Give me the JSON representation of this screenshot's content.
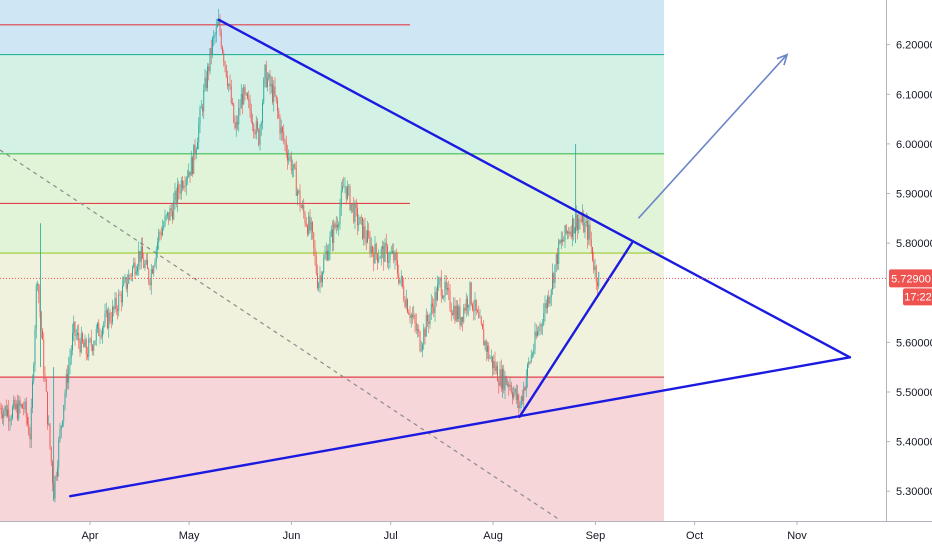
{
  "colors": {
    "bg": "#ffffff",
    "zone_blue": "#cfe6f4",
    "zone_teal": "#d3f1e4",
    "zone_green": "#e2f4d8",
    "zone_yellow": "#f0f2dd",
    "zone_red": "#f6d6d8",
    "fib_red": "#e0414b",
    "fib_teal": "#22b59a",
    "fib_green": "#40bf55",
    "fib_lime": "#9acd32",
    "triangle_blue": "#1a1ae0",
    "arrow_blue": "#6b86c8",
    "diag_gray": "#8c8c8c",
    "candle_up": "#26a69a",
    "candle_down": "#ef5350",
    "price_tag": "#ef5350",
    "axis_line": "#b2b5be"
  },
  "chart_data": {
    "type": "candlestick",
    "x_axis": {
      "labels": [
        "Apr",
        "May",
        "Jun",
        "Jul",
        "Aug",
        "Sep",
        "Oct",
        "Nov"
      ]
    },
    "y_axis": {
      "range": [
        5.24,
        6.29
      ],
      "ticks": [
        "6.20000",
        "6.10000",
        "6.00000",
        "5.90000",
        "5.80000",
        "5.60000",
        "5.50000",
        "5.40000",
        "5.30000"
      ]
    },
    "current_price": "5.72900",
    "countdown": "17:22",
    "fib_levels": [
      6.24,
      6.18,
      5.98,
      5.88,
      5.78,
      5.53
    ],
    "triangle": {
      "lines": [
        {
          "from": [
            "2019-05-10",
            6.25
          ],
          "to": [
            "2019-11-17",
            5.57
          ]
        },
        {
          "from": [
            "2019-03-26",
            5.29
          ],
          "to": [
            "2019-11-17",
            5.57
          ]
        },
        {
          "from": [
            "2019-08-09",
            5.45
          ],
          "to": [
            "2019-09-12",
            5.8
          ]
        }
      ]
    },
    "arrow": {
      "from": [
        "2019-09-14",
        5.85
      ],
      "to": [
        "2019-10-29",
        6.18
      ]
    },
    "price_path": [
      [
        "2019-02-20",
        5.39
      ],
      [
        "2019-02-24",
        5.46
      ],
      [
        "2019-02-28",
        5.45
      ],
      [
        "2019-03-04",
        5.47
      ],
      [
        "2019-03-08",
        5.46
      ],
      [
        "2019-03-12",
        5.47
      ],
      [
        "2019-03-14",
        5.41
      ],
      [
        "2019-03-16",
        5.75
      ],
      [
        "2019-03-18",
        5.55
      ],
      [
        "2019-03-20",
        5.38
      ],
      [
        "2019-03-21",
        5.3
      ],
      [
        "2019-03-24",
        5.48
      ],
      [
        "2019-03-27",
        5.62
      ],
      [
        "2019-03-31",
        5.58
      ],
      [
        "2019-04-04",
        5.63
      ],
      [
        "2019-04-08",
        5.66
      ],
      [
        "2019-04-12",
        5.72
      ],
      [
        "2019-04-16",
        5.78
      ],
      [
        "2019-04-19",
        5.73
      ],
      [
        "2019-04-22",
        5.82
      ],
      [
        "2019-04-26",
        5.87
      ],
      [
        "2019-04-29",
        5.93
      ],
      [
        "2019-05-02",
        5.96
      ],
      [
        "2019-05-05",
        6.08
      ],
      [
        "2019-05-08",
        6.2
      ],
      [
        "2019-05-10",
        6.24
      ],
      [
        "2019-05-13",
        6.12
      ],
      [
        "2019-05-15",
        6.02
      ],
      [
        "2019-05-17",
        6.1
      ],
      [
        "2019-05-20",
        6.06
      ],
      [
        "2019-05-22",
        6.01
      ],
      [
        "2019-05-24",
        6.14
      ],
      [
        "2019-05-27",
        6.09
      ],
      [
        "2019-05-29",
        6.02
      ],
      [
        "2019-06-01",
        5.96
      ],
      [
        "2019-06-04",
        5.87
      ],
      [
        "2019-06-07",
        5.82
      ],
      [
        "2019-06-09",
        5.72
      ],
      [
        "2019-06-12",
        5.79
      ],
      [
        "2019-06-15",
        5.85
      ],
      [
        "2019-06-17",
        5.92
      ],
      [
        "2019-06-20",
        5.86
      ],
      [
        "2019-06-23",
        5.82
      ],
      [
        "2019-06-26",
        5.78
      ],
      [
        "2019-06-29",
        5.78
      ],
      [
        "2019-07-02",
        5.77
      ],
      [
        "2019-07-05",
        5.7
      ],
      [
        "2019-07-08",
        5.64
      ],
      [
        "2019-07-10",
        5.6
      ],
      [
        "2019-07-13",
        5.66
      ],
      [
        "2019-07-16",
        5.72
      ],
      [
        "2019-07-19",
        5.68
      ],
      [
        "2019-07-22",
        5.65
      ],
      [
        "2019-07-25",
        5.7
      ],
      [
        "2019-07-28",
        5.63
      ],
      [
        "2019-07-31",
        5.57
      ],
      [
        "2019-08-03",
        5.53
      ],
      [
        "2019-08-06",
        5.52
      ],
      [
        "2019-08-09",
        5.47
      ],
      [
        "2019-08-12",
        5.56
      ],
      [
        "2019-08-15",
        5.63
      ],
      [
        "2019-08-18",
        5.7
      ],
      [
        "2019-08-21",
        5.79
      ],
      [
        "2019-08-24",
        5.83
      ],
      [
        "2019-08-27",
        5.85
      ],
      [
        "2019-08-30",
        5.82
      ],
      [
        "2019-09-01",
        5.74
      ],
      [
        "2019-09-02",
        5.729
      ]
    ]
  }
}
